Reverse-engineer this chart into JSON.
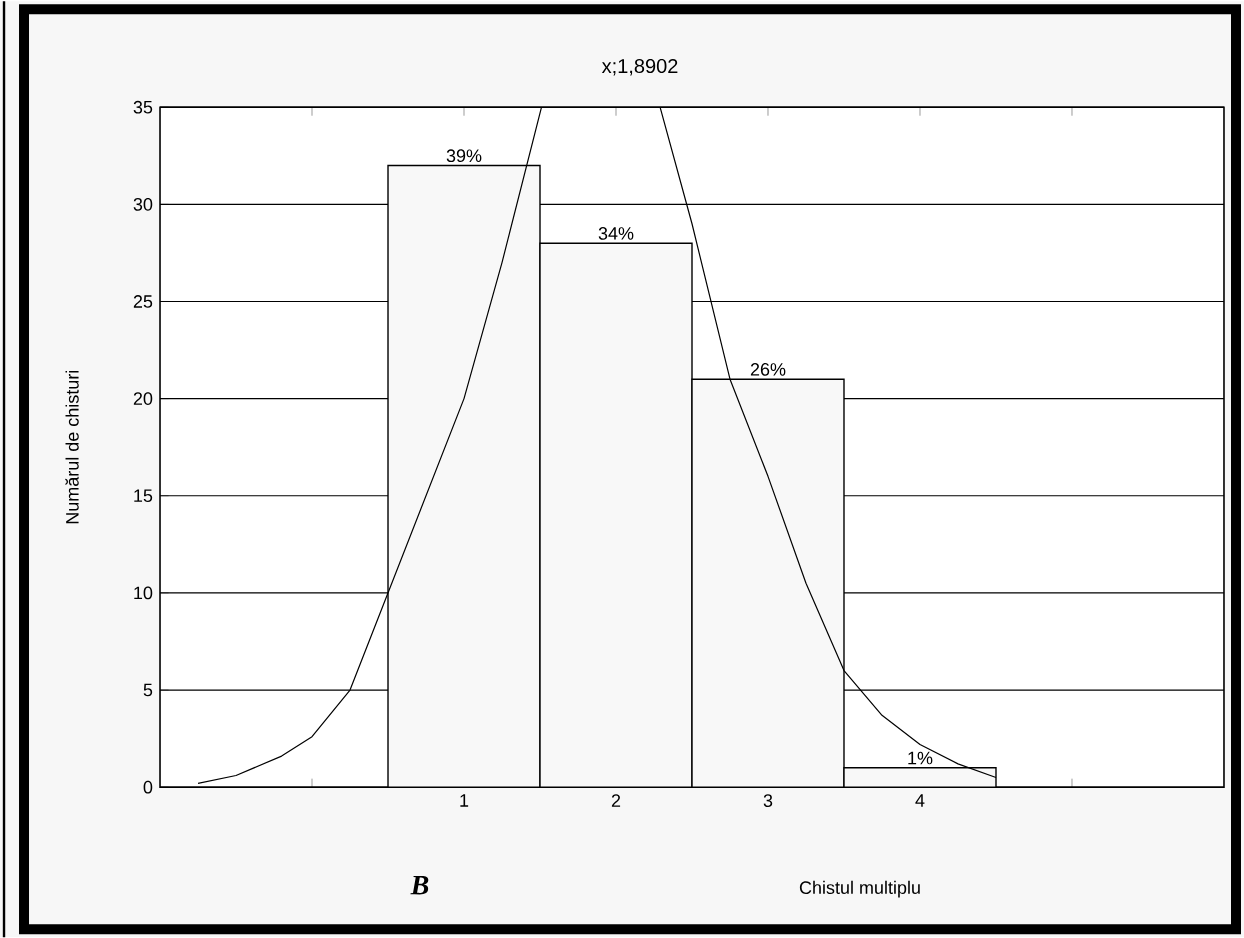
{
  "chart_data": {
    "type": "histogram",
    "title": "x;1,8902",
    "xlabel": "Chistul multiplu",
    "ylabel": "Numărul de chisturi",
    "annotations": [
      "B",
      {
        "text": "39%",
        "x": 1,
        "y": 32
      },
      {
        "text": "34%",
        "x": 2,
        "y": 28
      },
      {
        "text": "26%",
        "x": 3,
        "y": 21
      },
      {
        "text": "1%",
        "x": 4,
        "y": 1
      }
    ],
    "bins": [
      0.5,
      1.5,
      2.5,
      3.5,
      4.5
    ],
    "values": [
      32,
      28,
      21,
      1
    ],
    "color": "#f8f8f8",
    "series": [
      {
        "type": "line",
        "color": "#000000",
        "x": [
          -0.75,
          -0.5,
          -0.2,
          0,
          0.25,
          0.5,
          0.75,
          1,
          1.25,
          1.51,
          1.89,
          2.29,
          2.5,
          2.75,
          3,
          3.25,
          3.5,
          3.75,
          4,
          4.25,
          4.5
        ],
        "values": [
          0.2,
          0.6,
          1.6,
          2.6,
          5,
          10,
          15,
          20,
          27,
          35,
          null,
          35,
          29,
          21,
          16,
          10.5,
          6,
          3.7,
          2.2,
          1.2,
          0.5
        ]
      }
    ],
    "xlim": [
      -1,
      6
    ],
    "xticks": [
      {
        "value": 0,
        "label": null
      },
      1,
      2,
      3,
      4,
      {
        "value": 5,
        "label": null
      }
    ],
    "ylim": [
      0,
      35
    ],
    "yticks": [
      0,
      5,
      10,
      15,
      20,
      25,
      30,
      35
    ],
    "grid": "y",
    "line_style": "solid",
    "marker": "none"
  }
}
